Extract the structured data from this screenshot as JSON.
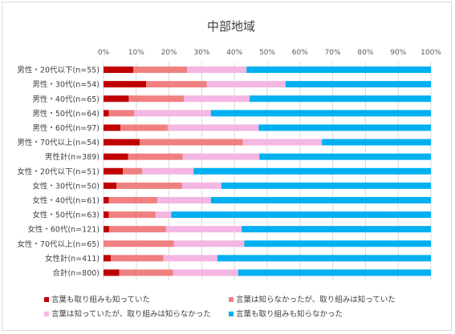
{
  "chart_data": {
    "type": "bar",
    "orientation": "horizontal",
    "stacked": true,
    "title": "中部地域",
    "xlabel": "",
    "ylabel": "",
    "xlim": [
      0,
      100
    ],
    "x_ticks": [
      "0%",
      "10%",
      "20%",
      "30%",
      "40%",
      "50%",
      "60%",
      "70%",
      "80%",
      "90%",
      "100%"
    ],
    "grid": true,
    "legend_position": "bottom",
    "categories": [
      "男性・20代以下(n=55)",
      "男性・30代(n=54)",
      "男性・40代(n=65)",
      "男性・50代(n=64)",
      "男性・60代(n=97)",
      "男性・70代以上(n=54)",
      "男性計(n=389)",
      "女性・20代以下(n=51)",
      "女性・30代(n=50)",
      "女性・40代(n=61)",
      "女性・50代(n=63)",
      "女性・60代(n=121)",
      "女性・70代以上(n=65)",
      "女性計(n=411)",
      "合計(n=800)"
    ],
    "series": [
      {
        "name": "言葉も取り組みも知っていた",
        "color": "#c00000",
        "values": [
          9.1,
          13.0,
          7.7,
          1.6,
          5.2,
          11.1,
          7.5,
          5.9,
          4.0,
          1.6,
          1.6,
          1.7,
          0.0,
          2.2,
          4.8
        ]
      },
      {
        "name": "言葉は知らなかったが、取り組みは知っていた",
        "color": "#f08080",
        "values": [
          16.4,
          18.5,
          16.9,
          7.8,
          14.4,
          31.5,
          16.7,
          5.9,
          20.0,
          14.8,
          14.3,
          17.4,
          21.5,
          16.1,
          16.4
        ]
      },
      {
        "name": "言葉は知っていたが、取り組みは知らなかった",
        "color": "#f4b6e2",
        "values": [
          18.2,
          24.1,
          20.0,
          23.4,
          27.8,
          24.1,
          23.4,
          15.7,
          12.0,
          16.4,
          4.8,
          23.1,
          21.5,
          16.5,
          19.9
        ]
      },
      {
        "name": "言葉も取り組みも知らなかった",
        "color": "#00b0f0",
        "values": [
          56.3,
          44.4,
          55.4,
          67.2,
          52.6,
          33.3,
          52.4,
          72.5,
          64.0,
          67.2,
          79.3,
          57.8,
          57.0,
          65.2,
          58.9
        ]
      }
    ]
  }
}
